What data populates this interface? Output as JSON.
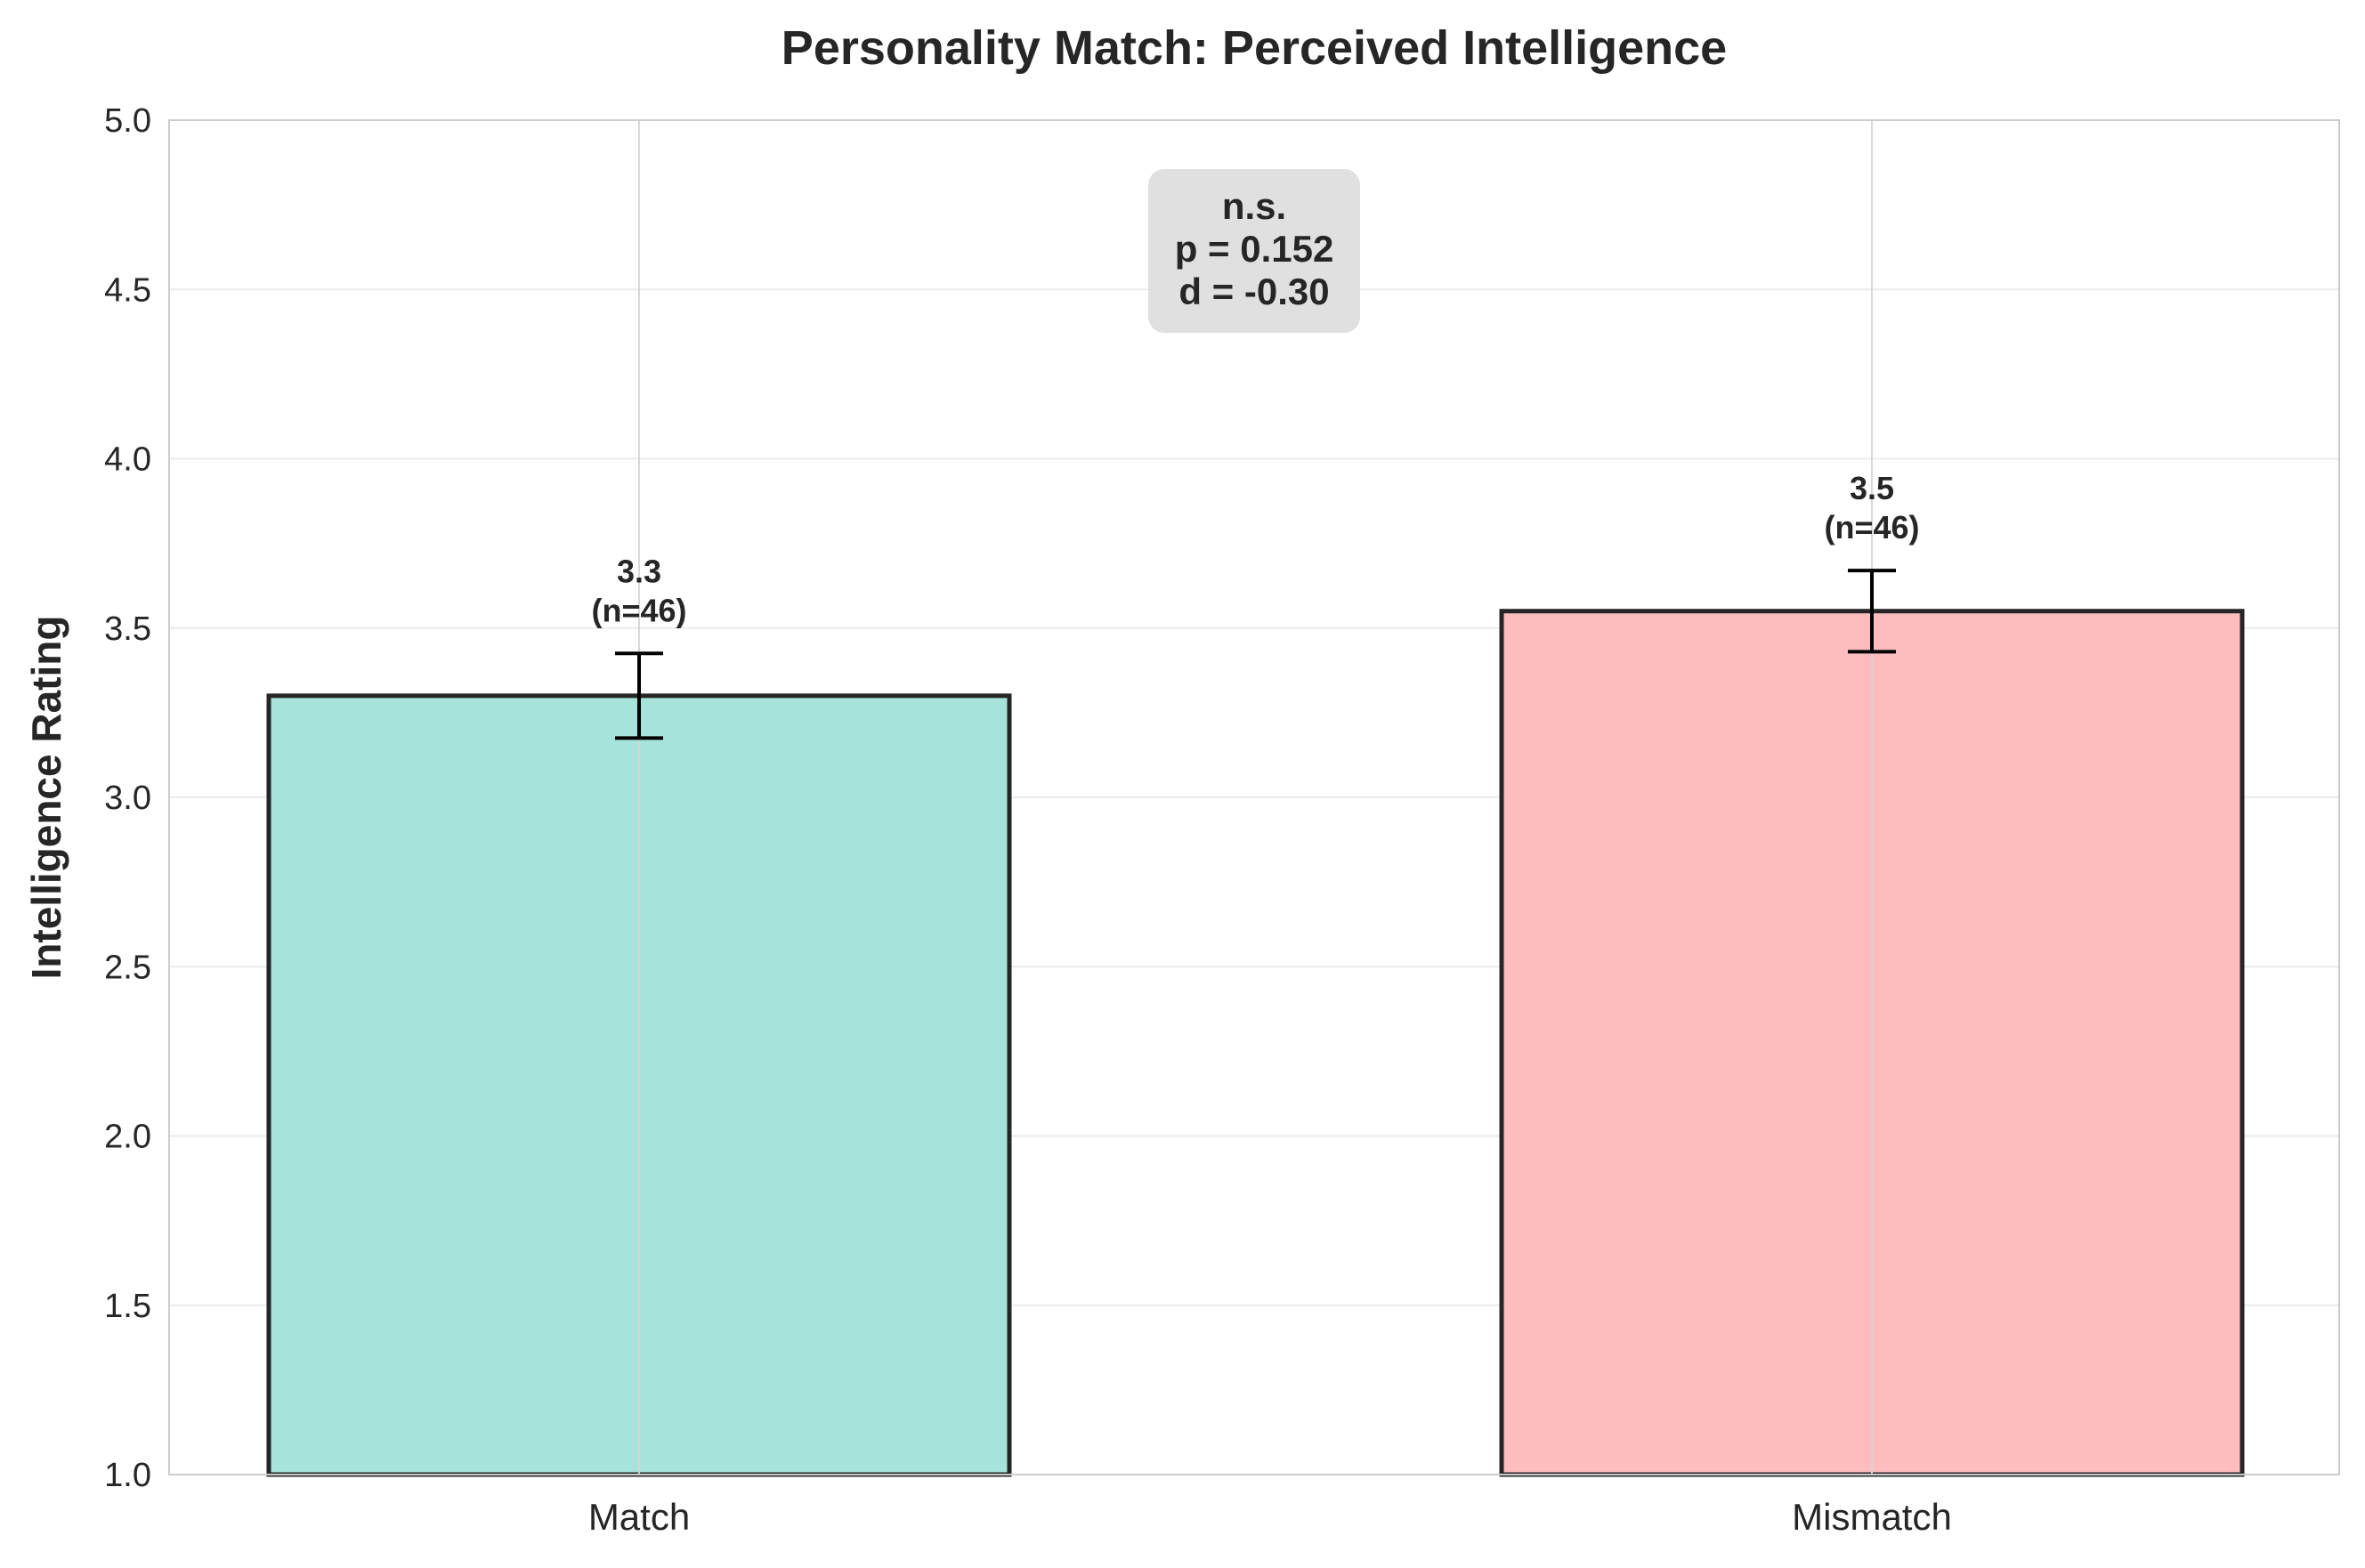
{
  "chart_data": {
    "type": "bar",
    "title": "Personality Match: Perceived Intelligence",
    "xlabel": "",
    "ylabel": "Intelligence Rating",
    "ylim": [
      1.0,
      5.0
    ],
    "yticks": [
      "1.0",
      "1.5",
      "2.0",
      "2.5",
      "3.0",
      "3.5",
      "4.0",
      "4.5",
      "5.0"
    ],
    "categories": [
      "Match",
      "Mismatch"
    ],
    "values": [
      3.3,
      3.55
    ],
    "errors": [
      0.125,
      0.12
    ],
    "bar_labels": [
      {
        "value": "3.3",
        "n": "(n=46)"
      },
      {
        "value": "3.5",
        "n": "(n=46)"
      }
    ],
    "colors": [
      "#a6e3da",
      "#fdbdbf"
    ],
    "edge_color": "#262626",
    "grid": true,
    "annotation": {
      "lines": [
        "n.s.",
        "p = 0.152",
        "d = -0.30"
      ],
      "background": "#e0e0e0"
    }
  }
}
